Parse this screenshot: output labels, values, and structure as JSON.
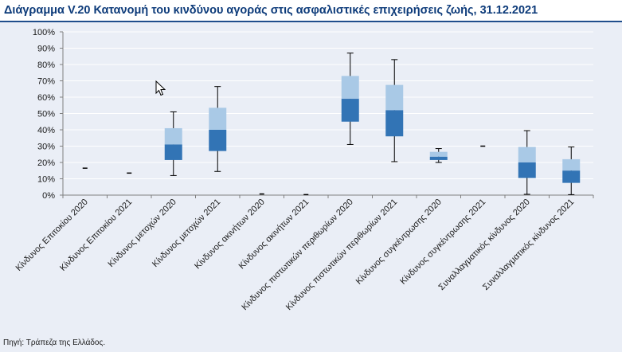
{
  "title": "Διάγραμμα V.20 Κατανομή του κινδύνου αγοράς στις ασφαλιστικές επιχειρήσεις ζωής, 31.12.2021",
  "source": "Πηγή: Τράπεζα της Ελλάδος.",
  "colors": {
    "title_text": "#0d3b7a",
    "title_border": "#1f4e8c",
    "box_upper": "#a9c9e6",
    "box_lower": "#3274b5",
    "whisker": "#000000",
    "background": "#eaeef6"
  },
  "chart_data": {
    "type": "box",
    "ylim": [
      0,
      100
    ],
    "y_ticks": [
      "0%",
      "10%",
      "20%",
      "30%",
      "40%",
      "50%",
      "60%",
      "70%",
      "80%",
      "90%",
      "100%"
    ],
    "y_tick_values": [
      0,
      10,
      20,
      30,
      40,
      50,
      60,
      70,
      80,
      90,
      100
    ],
    "categories": [
      "Κίνδυνος Επιτοκίου 2020",
      "Κίνδυνος Επιτοκίου 2021",
      "Κίνδυνος μετοχών 2020",
      "Κίνδυνος μετοχών 2021",
      "Κίνδυνος ακινήτων 2020",
      "Κίνδυνος ακινήτων 2021",
      "Κίνδυνος πιστωτικών περιθωρίων 2020",
      "Κίνδυνος πιστωτικών περιθωρίων 2021",
      "Κίνδυνος συγκέντρωσης 2020",
      "Κίνδυνος συγκέντρωσης 2021",
      "Συναλλαγματικός κίνδυνος 2020",
      "Συναλλαγματικός κίνδυνος 2021"
    ],
    "boxes": [
      {
        "min": 16.5,
        "q1": 16.5,
        "median": 16.5,
        "q3": 16.5,
        "max": 16.5
      },
      {
        "min": 13.5,
        "q1": 13.5,
        "median": 13.5,
        "q3": 13.5,
        "max": 13.5
      },
      {
        "min": 12,
        "q1": 21.5,
        "median": 31,
        "q3": 41,
        "max": 51
      },
      {
        "min": 14.5,
        "q1": 27,
        "median": 40,
        "q3": 53.5,
        "max": 66.5
      },
      {
        "min": 0.7,
        "q1": 0.7,
        "median": 0.7,
        "q3": 0.7,
        "max": 0.7
      },
      {
        "min": 0.3,
        "q1": 0.3,
        "median": 0.3,
        "q3": 0.3,
        "max": 0.3
      },
      {
        "min": 31,
        "q1": 45,
        "median": 59,
        "q3": 73,
        "max": 87
      },
      {
        "min": 20.5,
        "q1": 36,
        "median": 52,
        "q3": 67.5,
        "max": 83
      },
      {
        "min": 20,
        "q1": 21.5,
        "median": 23.5,
        "q3": 26.5,
        "max": 28.5
      },
      {
        "min": 30,
        "q1": 30,
        "median": 30,
        "q3": 30,
        "max": 30
      },
      {
        "min": 0.5,
        "q1": 10.5,
        "median": 20,
        "q3": 29.5,
        "max": 39.5
      },
      {
        "min": 0.3,
        "q1": 7.5,
        "median": 15,
        "q3": 22,
        "max": 29.5
      }
    ],
    "grid": true,
    "legend": "none"
  }
}
